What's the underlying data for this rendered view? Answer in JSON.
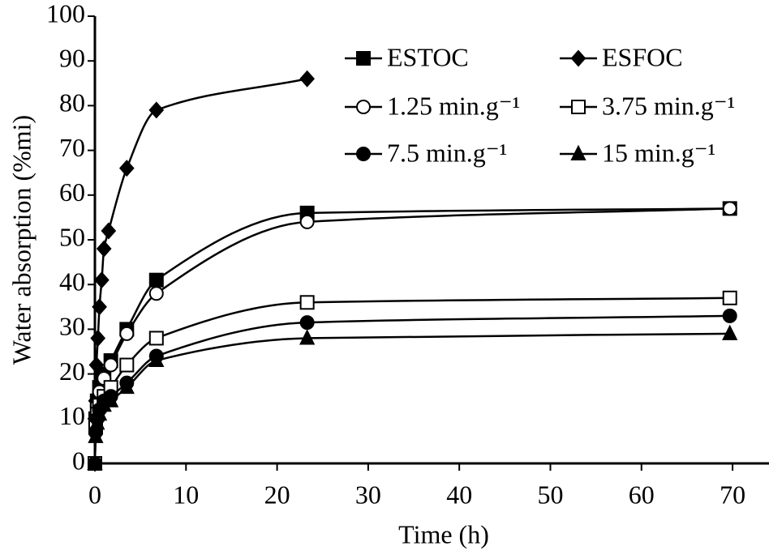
{
  "chart_data": {
    "type": "line",
    "x_label": "Time (h)",
    "y_label": "Water absorption (%mi)",
    "xlim": [
      0,
      74
    ],
    "ylim": [
      0,
      100
    ],
    "xticks": [
      0,
      10,
      20,
      30,
      40,
      50,
      60,
      70
    ],
    "yticks": [
      0,
      10,
      20,
      30,
      40,
      50,
      60,
      70,
      80,
      90,
      100
    ],
    "legend": "top-right",
    "series": [
      {
        "name": "ESTOC",
        "color": "#000000",
        "marker": "square-filled",
        "x": [
          0,
          0.083,
          0.25,
          0.5,
          1,
          1.75,
          3.5,
          6.75,
          23.3,
          69.7
        ],
        "values": [
          0,
          10,
          14,
          17,
          20,
          23,
          30,
          41,
          56,
          57
        ]
      },
      {
        "name": "ESFOC",
        "color": "#000000",
        "marker": "diamond-filled",
        "x": [
          0,
          0.083,
          0.17,
          0.33,
          0.5,
          0.75,
          1.0,
          1.5,
          3.5,
          6.75,
          23.3
        ],
        "values": [
          0,
          14,
          22,
          28,
          35,
          41,
          48,
          52,
          66,
          79,
          86
        ]
      },
      {
        "name": "1.25 min.g⁻¹",
        "color": "#000000",
        "marker": "circle-open",
        "x": [
          0,
          0.083,
          0.25,
          0.5,
          1,
          1.75,
          3.5,
          6.75,
          23.3,
          69.7
        ],
        "values": [
          0,
          9,
          13,
          16,
          19,
          22,
          29,
          38,
          54,
          57
        ]
      },
      {
        "name": "3.75 min.g⁻¹",
        "color": "#000000",
        "marker": "square-open",
        "x": [
          0,
          0.083,
          0.25,
          0.5,
          1,
          1.75,
          3.5,
          6.75,
          23.3,
          69.7
        ],
        "values": [
          0,
          8,
          11,
          13,
          15,
          17,
          22,
          28,
          36,
          37
        ]
      },
      {
        "name": "7.5 min.g⁻¹",
        "color": "#000000",
        "marker": "circle-filled",
        "x": [
          0,
          0.083,
          0.25,
          0.5,
          1,
          1.75,
          3.5,
          6.75,
          23.3,
          69.7
        ],
        "values": [
          0,
          7,
          10,
          12,
          14,
          15,
          18,
          24,
          31.5,
          33
        ]
      },
      {
        "name": "15 min.g⁻¹",
        "color": "#000000",
        "marker": "triangle-filled",
        "x": [
          0,
          0.083,
          0.25,
          0.5,
          1,
          1.75,
          3.5,
          6.75,
          23.3,
          69.7
        ],
        "values": [
          0,
          6,
          9,
          11,
          13,
          14,
          17,
          23,
          28,
          29
        ]
      }
    ]
  }
}
